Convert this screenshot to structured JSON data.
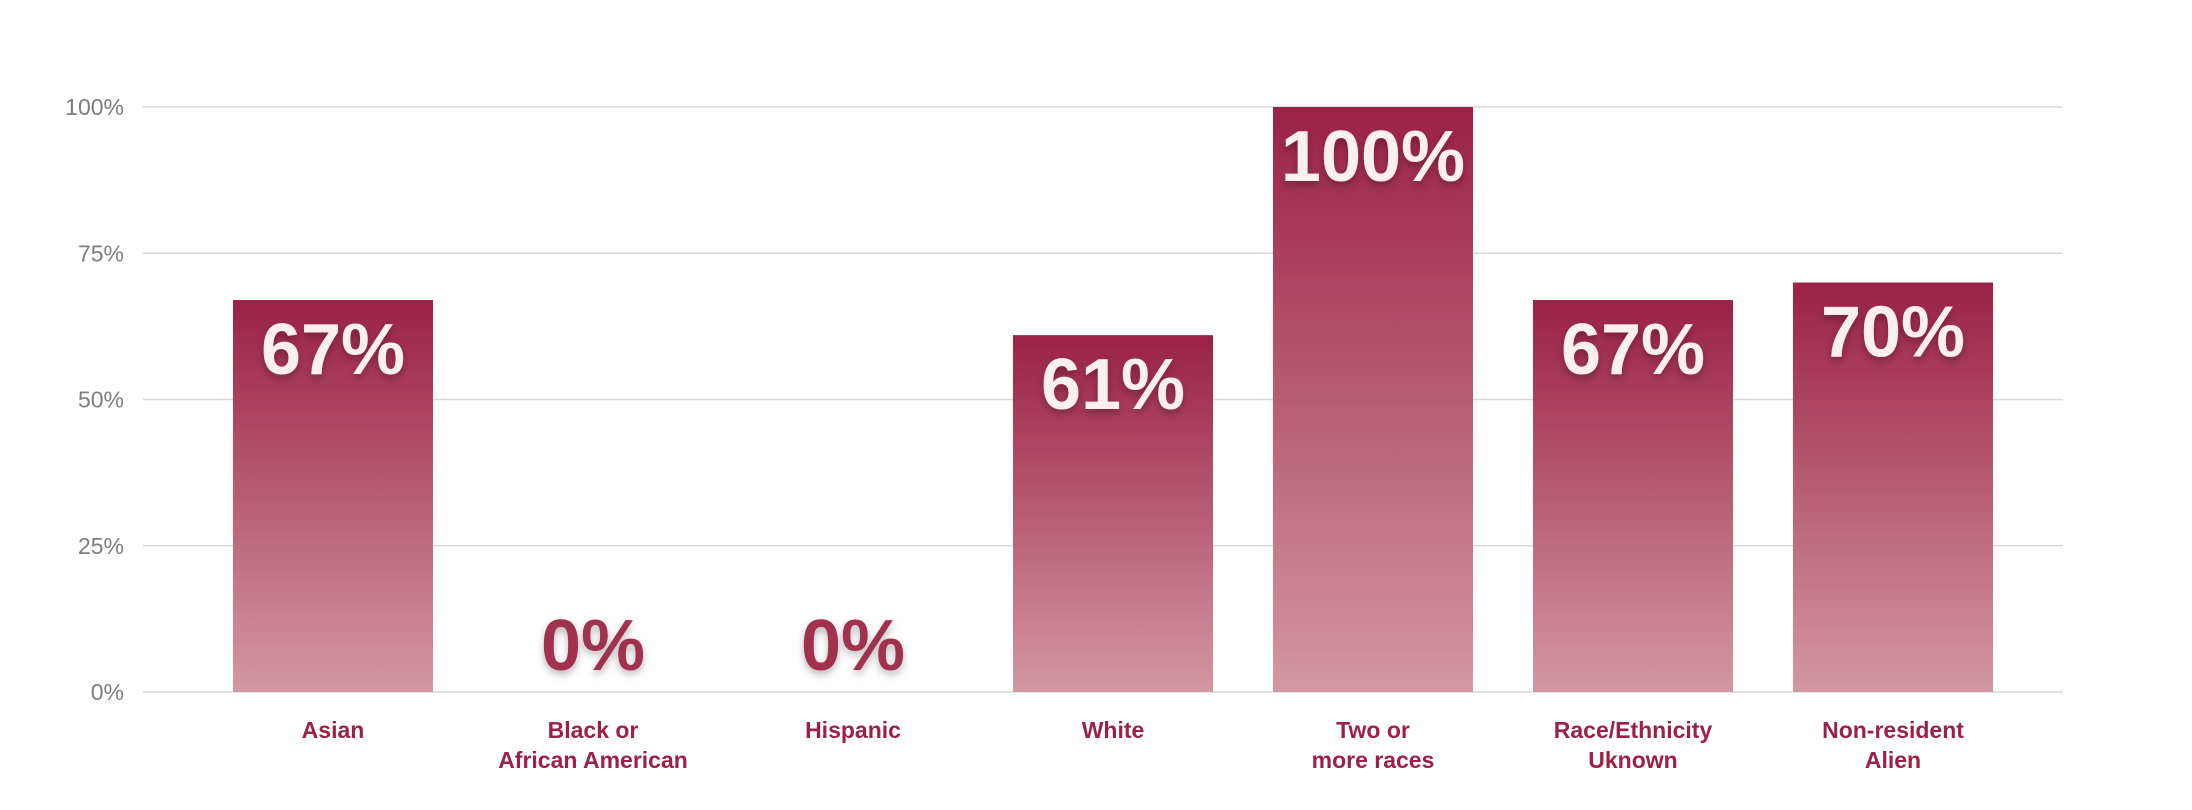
{
  "chart_data": {
    "type": "bar",
    "categories": [
      [
        "Asian"
      ],
      [
        "Black or",
        "African American"
      ],
      [
        "Hispanic"
      ],
      [
        "White"
      ],
      [
        "Two or",
        "more races"
      ],
      [
        "Race/Ethnicity",
        "Uknown"
      ],
      [
        "Non-resident",
        "Alien"
      ]
    ],
    "values": [
      67,
      0,
      0,
      61,
      100,
      67,
      70
    ],
    "value_labels": [
      "67%",
      "0%",
      "0%",
      "61%",
      "100%",
      "67%",
      "70%"
    ],
    "y_ticks": [
      {
        "value": 0,
        "label": "0%"
      },
      {
        "value": 25,
        "label": "25%"
      },
      {
        "value": 50,
        "label": "50%"
      },
      {
        "value": 75,
        "label": "75%"
      },
      {
        "value": 100,
        "label": "100%"
      }
    ],
    "ylim": [
      0,
      100
    ],
    "grid": true,
    "legend": "none",
    "colors": {
      "bar_top": "#9b2146",
      "bar_bottom": "#d497a4",
      "category_label": "#9b2146",
      "value_label_inside": "#fbeff2",
      "value_label_zero": "#a1304f",
      "gridline": "#d9d9dd",
      "tick_label": "#7d7d7d"
    }
  }
}
